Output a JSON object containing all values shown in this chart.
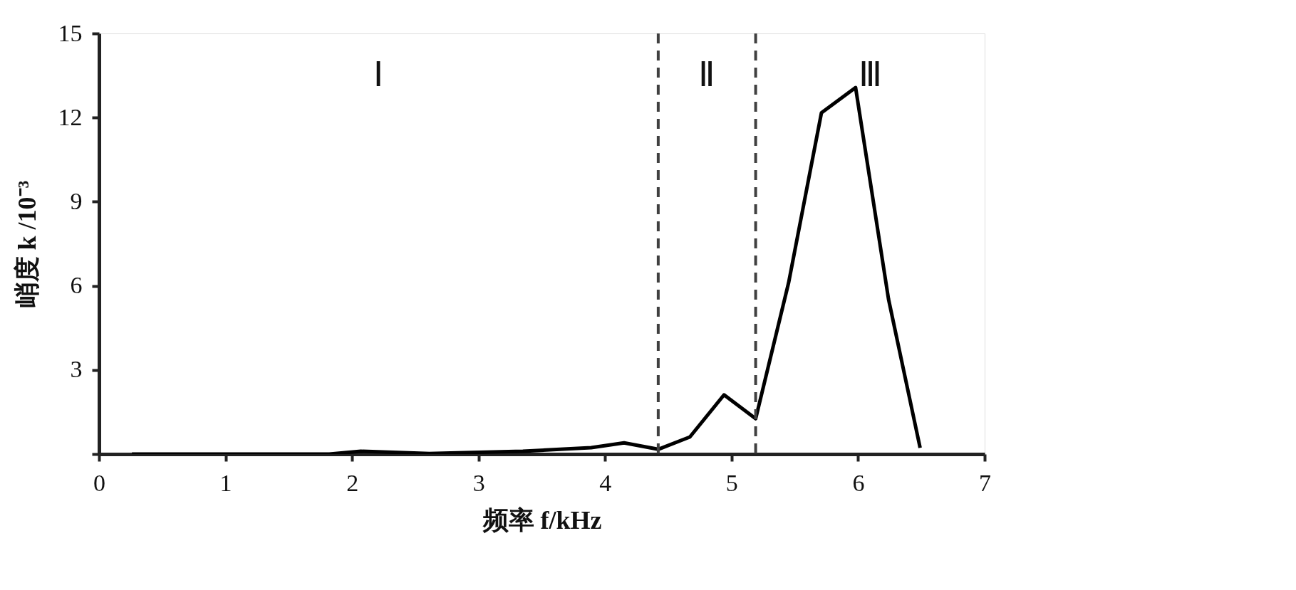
{
  "chart_data": {
    "type": "line",
    "xlabel": "频率 f/kHz",
    "ylabel": "峭度 k /10⁻³",
    "x": [
      0.26,
      1.82,
      2.07,
      2.61,
      3.35,
      3.89,
      4.15,
      4.42,
      4.67,
      4.94,
      5.19,
      5.45,
      5.71,
      5.98,
      6.24,
      6.49
    ],
    "series": [
      {
        "color": "#000000",
        "values": [
          0,
          0,
          0.1,
          0.02,
          0.1,
          0.23,
          0.4,
          0.17,
          0.61,
          2.11,
          1.26,
          6.1,
          12.17,
          13.07,
          5.53,
          0.22
        ]
      }
    ],
    "xlim": [
      0,
      7
    ],
    "xticks": [
      0,
      1,
      2,
      3,
      4,
      5,
      6,
      7
    ],
    "ylim": [
      0,
      15
    ],
    "yticks": [
      {
        "value": 0,
        "label": null
      },
      3,
      6,
      9,
      12,
      15
    ],
    "ref_lines": [
      {
        "axis": "x",
        "value": 4.42,
        "color": "#404040",
        "line_style": "dashed"
      },
      {
        "axis": "x",
        "value": 5.19,
        "color": "#404040",
        "line_style": "dashed"
      }
    ],
    "annotations": [
      "Ⅰ",
      "Ⅱ",
      "Ⅲ"
    ],
    "grid": false,
    "marker": "none",
    "line_style": "solid"
  }
}
